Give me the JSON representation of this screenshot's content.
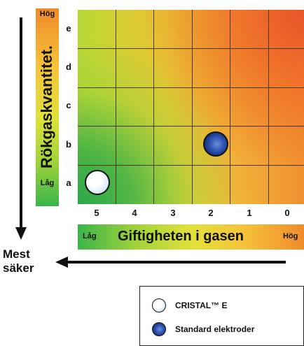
{
  "y_axis": {
    "title": "Rökgaskvantitet.",
    "high": "Hög",
    "low": "Låg",
    "rows": [
      "e",
      "d",
      "c",
      "b",
      "a"
    ]
  },
  "x_axis": {
    "title": "Giftigheten i gasen",
    "low": "Låg",
    "high": "Hög",
    "columns": [
      "5",
      "4",
      "3",
      "2",
      "1",
      "0"
    ]
  },
  "safest_label": "Mest säker",
  "legend": {
    "items": [
      {
        "label": "CRISTAL™ E",
        "symbol": "white-circle-icon"
      },
      {
        "label": "Standard elektroder",
        "symbol": "blue-circle-icon"
      }
    ]
  },
  "markers": [
    {
      "name": "CRISTAL™ E",
      "column": "5",
      "row": "a",
      "color": "#ffffff"
    },
    {
      "name": "Standard elektroder",
      "column": "2",
      "row": "b",
      "color": "#2f57b6"
    }
  ],
  "colors": {
    "low": "#39b54a",
    "mid": "#e2e13a",
    "high": "#f08a2a"
  }
}
